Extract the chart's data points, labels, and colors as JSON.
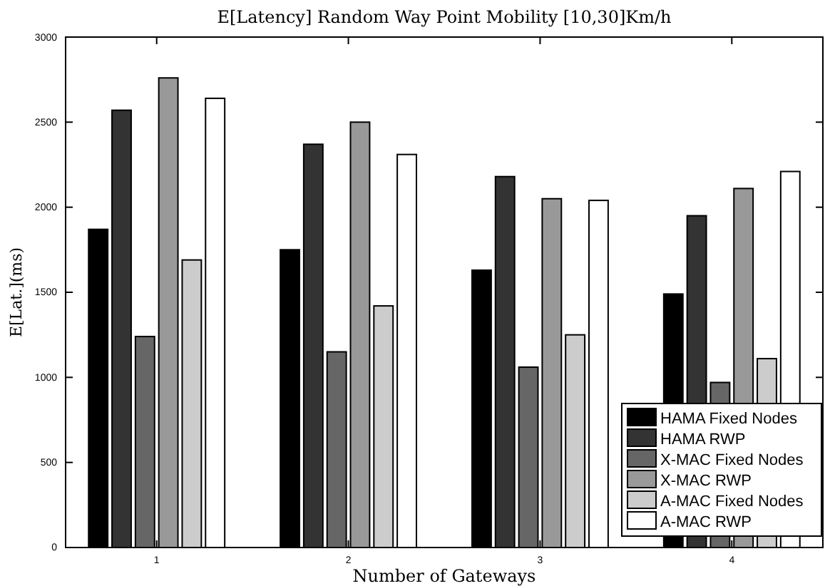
{
  "chart_data": {
    "type": "bar",
    "title": "E[Latency] Random Way Point Mobility [10,30]Km/h",
    "xlabel": "Number of Gateways",
    "ylabel": "E[Lat.](ms)",
    "categories": [
      "1",
      "2",
      "3",
      "4"
    ],
    "series": [
      {
        "name": "HAMA Fixed Nodes",
        "color": "#000000",
        "values": [
          1870,
          1750,
          1630,
          1490
        ]
      },
      {
        "name": "HAMA RWP",
        "color": "#333333",
        "values": [
          2570,
          2370,
          2180,
          1950
        ]
      },
      {
        "name": "X-MAC Fixed Nodes",
        "color": "#666666",
        "values": [
          1240,
          1150,
          1060,
          970
        ]
      },
      {
        "name": "X-MAC RWP",
        "color": "#999999",
        "values": [
          2760,
          2500,
          2050,
          2110
        ]
      },
      {
        "name": "A-MAC Fixed Nodes",
        "color": "#cccccc",
        "values": [
          1690,
          1420,
          1250,
          1110
        ]
      },
      {
        "name": "A-MAC RWP",
        "color": "#ffffff",
        "values": [
          2640,
          2310,
          2040,
          2210
        ]
      }
    ],
    "ylim": [
      0,
      3000
    ],
    "yticks": [
      0,
      500,
      1000,
      1500,
      2000,
      2500,
      3000
    ],
    "legend": "bottom right"
  }
}
